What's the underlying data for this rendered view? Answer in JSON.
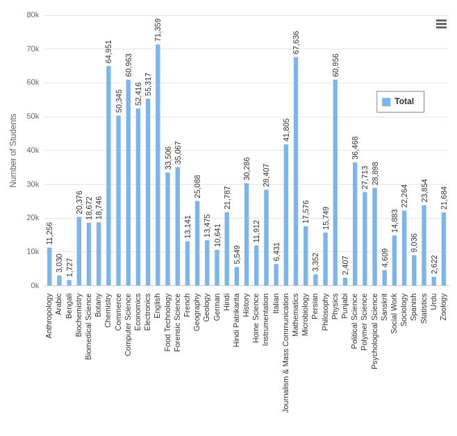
{
  "chart_data": {
    "type": "bar",
    "y_label": "Number of Students",
    "categories": [
      "Anthropology",
      "Arabic",
      "Bengali",
      "Biochemistry",
      "Biomedical Science",
      "Botany",
      "Chemistry",
      "Commerce",
      "Computer Science",
      "Economics",
      "Electronics",
      "English",
      "Food Technology",
      "Forensic Science",
      "French",
      "Geography",
      "Geology",
      "German",
      "Hindi",
      "Hindi Patrikarita",
      "History",
      "Home Science",
      "Instrumentation",
      "Italian",
      "Journalism & Mass Communication",
      "Mathematics",
      "Microbiology",
      "Persian",
      "Philosophy",
      "Physics",
      "Punjabi",
      "Political Science",
      "Polymer Science",
      "Psychological Science",
      "Sanskrit",
      "Social Work",
      "Sociology",
      "Spanish",
      "Statistics",
      "Urdu",
      "Zoology"
    ],
    "series": [
      {
        "name": "Total",
        "color": "#7cb5ec",
        "values": [
          11256,
          3030,
          1727,
          20376,
          18672,
          18746,
          64951,
          50345,
          60963,
          52416,
          55317,
          71359,
          33506,
          35067,
          13141,
          25088,
          13475,
          10641,
          21787,
          5549,
          30286,
          11912,
          28407,
          6431,
          41805,
          67636,
          17576,
          3352,
          15749,
          60956,
          2407,
          36468,
          27713,
          28898,
          4609,
          14883,
          22264,
          9036,
          23854,
          2622,
          21684
        ],
        "value_labels": [
          "11,256",
          "3,030",
          "1,727",
          "20,376",
          "18,672",
          "18,746",
          "64,951",
          "50,345",
          "60,963",
          "52,416",
          "55,317",
          "71,359",
          "33,506",
          "35,067",
          "13,141",
          "25,088",
          "13,475",
          "10,641",
          "21,787",
          "5,549",
          "30,286",
          "11,912",
          "28,407",
          "6,431",
          "41,805",
          "67,636",
          "17,576",
          "3,352",
          "15,749",
          "60,956",
          "2,407",
          "36,468",
          "27,713",
          "28,898",
          "4,609",
          "14,883",
          "22,264",
          "9,036",
          "23,854",
          "2,622",
          "21,684"
        ]
      }
    ],
    "ylim": [
      0,
      80000
    ],
    "yticks": [
      {
        "value": 0,
        "label": "0k"
      },
      {
        "value": 10000,
        "label": "10k"
      },
      {
        "value": 20000,
        "label": "20k"
      },
      {
        "value": 30000,
        "label": "30k"
      },
      {
        "value": 40000,
        "label": "40k"
      },
      {
        "value": 50000,
        "label": "50k"
      },
      {
        "value": 60000,
        "label": "60k"
      },
      {
        "value": 70000,
        "label": "70k"
      },
      {
        "value": 80000,
        "label": "80k"
      }
    ],
    "grid": true,
    "legend": "right",
    "data_labels": true
  }
}
